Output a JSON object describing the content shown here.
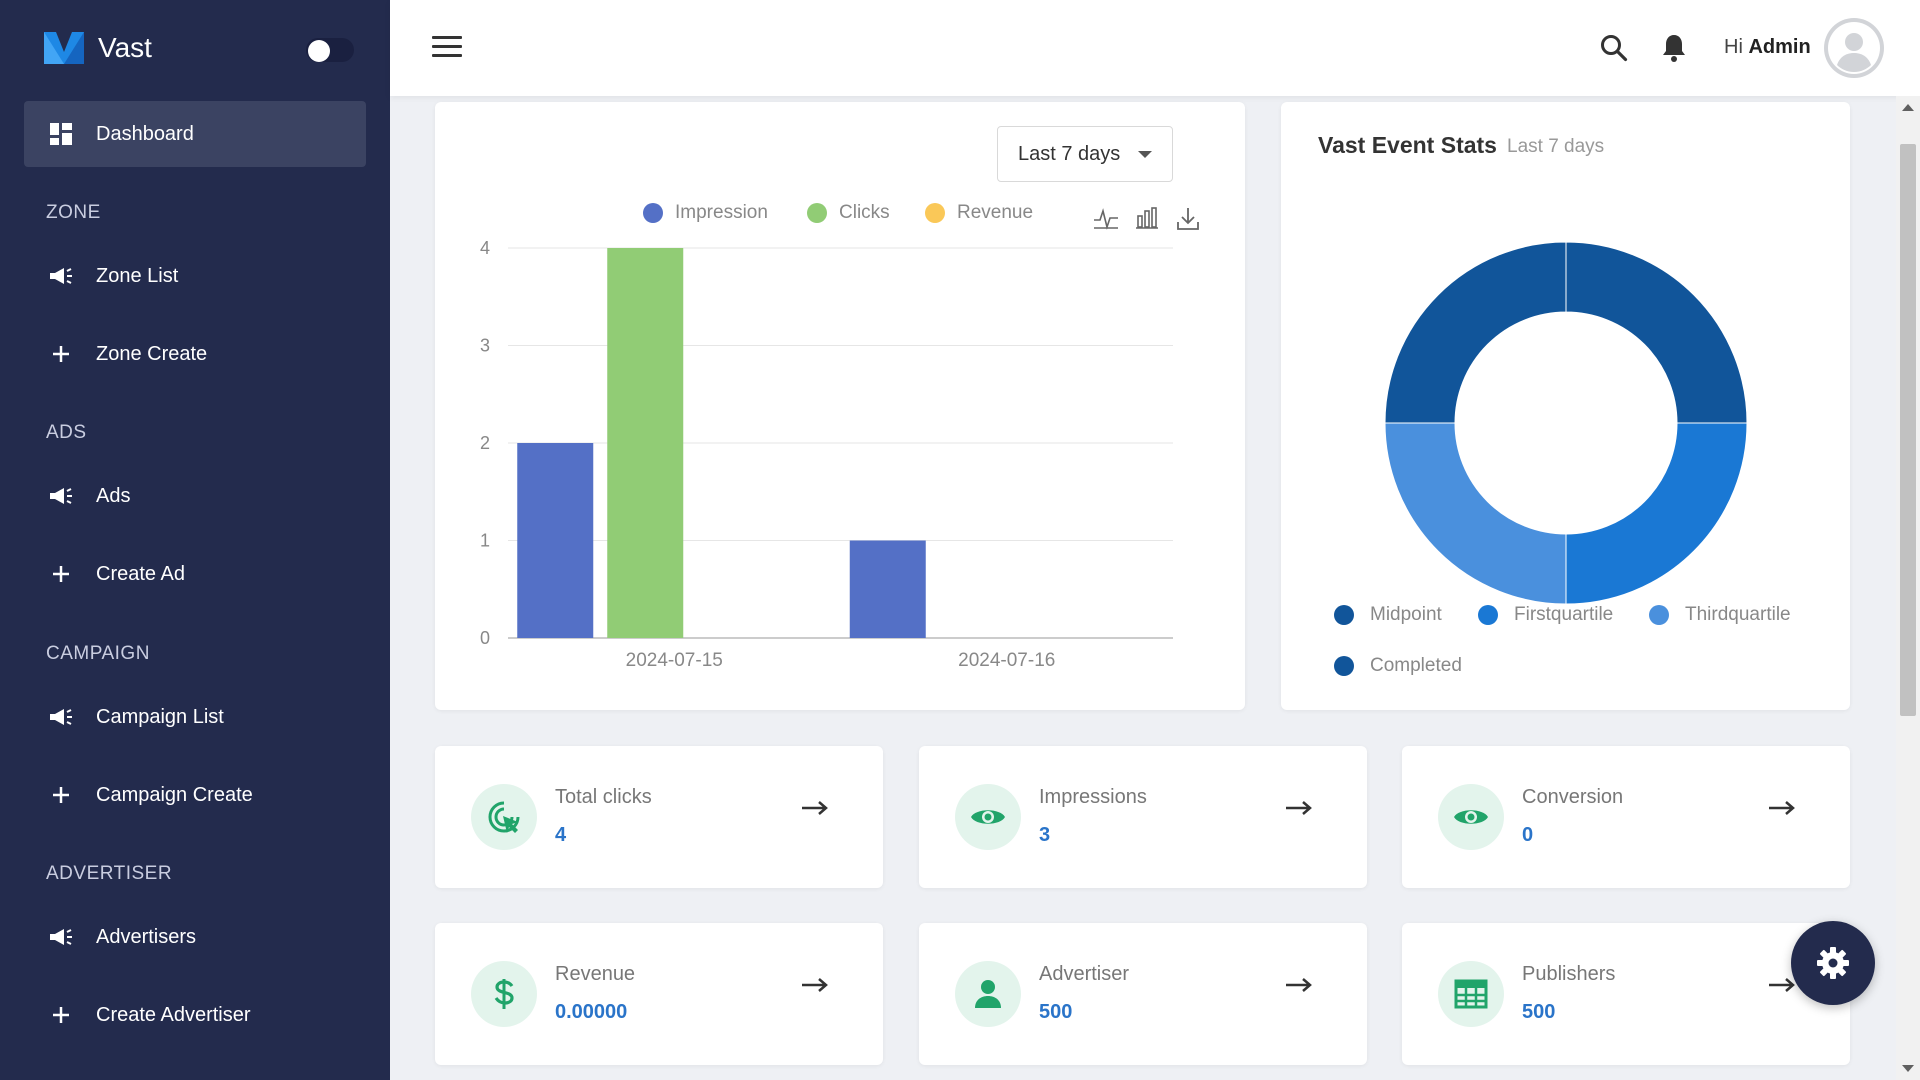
{
  "sidebar": {
    "brand": "Vast",
    "dashboard": "Dashboard",
    "sections": {
      "zone": "ZONE",
      "ads": "ADS",
      "campaign": "CAMPAIGN",
      "advertiser": "ADVERTISER"
    },
    "items": {
      "zone_list": "Zone List",
      "zone_create": "Zone Create",
      "ads": "Ads",
      "create_ad": "Create Ad",
      "campaign_list": "Campaign List",
      "campaign_create": "Campaign Create",
      "advertisers": "Advertisers",
      "create_advertiser": "Create Advertiser"
    }
  },
  "header": {
    "greeting": "Hi",
    "user": "Admin"
  },
  "range_filter": "Last 7 days",
  "chart_data": [
    {
      "type": "bar",
      "categories": [
        "2024-07-15",
        "2024-07-16"
      ],
      "series": [
        {
          "name": "Impression",
          "values": [
            2,
            1
          ],
          "color": "#5470c6"
        },
        {
          "name": "Clicks",
          "values": [
            4,
            0
          ],
          "color": "#91cc75"
        },
        {
          "name": "Revenue",
          "values": [
            0,
            0
          ],
          "color": "#fac858"
        }
      ],
      "title": "",
      "xlabel": "",
      "ylabel": "",
      "ylim": [
        0,
        4
      ],
      "yticks": [
        "0",
        "1",
        "2",
        "3",
        "4"
      ],
      "grid": true,
      "legend": "top"
    },
    {
      "type": "pie",
      "title": "Vast Event Stats",
      "subtitle": "Last 7 days",
      "categories": [
        "Midpoint",
        "Firstquartile",
        "Thirdquartile",
        "Completed"
      ],
      "values": [
        1,
        1,
        1,
        1
      ],
      "colors": [
        "#11559a",
        "#1a78d4",
        "#4a90dd",
        "#11559a"
      ],
      "legend": "bottom"
    }
  ],
  "stats": [
    {
      "label": "Total clicks",
      "value": "4",
      "icon": "cursor-click-icon"
    },
    {
      "label": "Impressions",
      "value": "3",
      "icon": "eye-icon"
    },
    {
      "label": "Conversion",
      "value": "0",
      "icon": "eye-icon"
    },
    {
      "label": "Revenue",
      "value": "0.00000",
      "icon": "dollar-icon"
    },
    {
      "label": "Advertiser",
      "value": "500",
      "icon": "user-icon"
    },
    {
      "label": "Publishers",
      "value": "500",
      "icon": "table-icon"
    }
  ],
  "colors": {
    "sidebar_bg": "#232b4d",
    "accent_green": "#21a46a",
    "value_blue": "#2a74c9"
  }
}
